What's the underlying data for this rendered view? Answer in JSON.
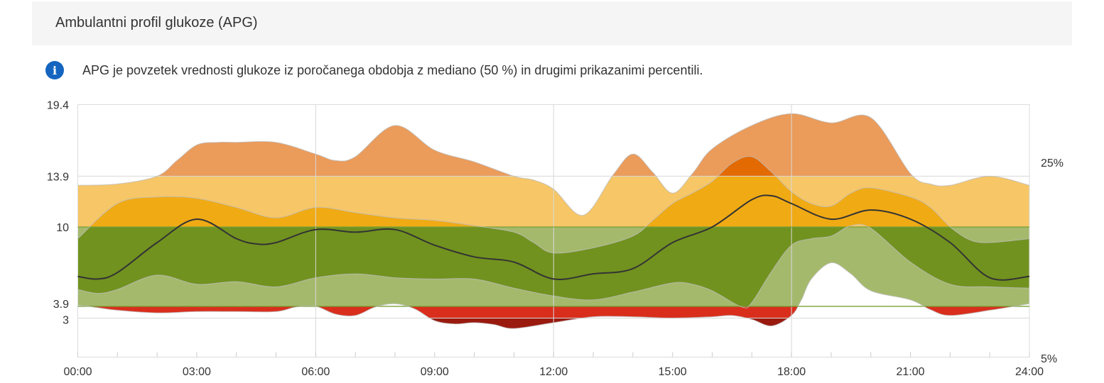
{
  "header": {
    "title": "Ambulantni profil glukoze (APG)"
  },
  "info": {
    "icon": "info-icon",
    "text": "APG je povzetek vrednosti glukoze iz poročanega obdobja z mediano (50 %) in drugimi prikazanimi percentili."
  },
  "chart_data": {
    "type": "area",
    "ylim": [
      0,
      19.4
    ],
    "xlim": [
      0,
      24
    ],
    "y_tick_labels": [
      "19.4",
      "13.9",
      "10",
      "3.9",
      "3"
    ],
    "y_ticks": [
      19.4,
      13.9,
      10,
      3.9,
      3
    ],
    "x_tick_labels": [
      "00:00",
      "03:00",
      "06:00",
      "09:00",
      "12:00",
      "15:00",
      "18:00",
      "21:00",
      "24:00"
    ],
    "x_ticks": [
      0,
      3,
      6,
      9,
      12,
      15,
      18,
      21,
      24
    ],
    "right_labels": [
      "25%",
      "5%"
    ],
    "target_range": [
      3.9,
      10
    ],
    "zones": [
      {
        "from": 13.9,
        "to": 19.4,
        "outer_color": "#eb9b5a",
        "inner_color": "#e36a00"
      },
      {
        "from": 10,
        "to": 13.9,
        "outer_color": "#f6c667",
        "inner_color": "#f0aa14"
      },
      {
        "from": 3.9,
        "to": 10,
        "outer_color": "#a5b96d",
        "inner_color": "#71921f"
      },
      {
        "from": 3,
        "to": 3.9,
        "outer_color": "#d92e1c",
        "inner_color": "#d92e1c"
      },
      {
        "from": 0,
        "to": 3,
        "outer_color": "#9b1a0f",
        "inner_color": "#9b1a0f"
      }
    ],
    "series": {
      "p95": [
        [
          0,
          13.2
        ],
        [
          1,
          13.3
        ],
        [
          2,
          13.9
        ],
        [
          2.5,
          15.1
        ],
        [
          3,
          16.3
        ],
        [
          3.5,
          16.5
        ],
        [
          4,
          16.5
        ],
        [
          5,
          16.5
        ],
        [
          6,
          15.6
        ],
        [
          6.5,
          15.1
        ],
        [
          7,
          15.4
        ],
        [
          8,
          17.8
        ],
        [
          9,
          15.9
        ],
        [
          10,
          15.0
        ],
        [
          11,
          13.9
        ],
        [
          11.5,
          13.6
        ],
        [
          12,
          12.9
        ],
        [
          12.75,
          10.9
        ],
        [
          13.5,
          14.0
        ],
        [
          14,
          15.6
        ],
        [
          14.5,
          14.2
        ],
        [
          15,
          12.6
        ],
        [
          15.5,
          14.1
        ],
        [
          16,
          16.0
        ],
        [
          17,
          17.8
        ],
        [
          18,
          18.7
        ],
        [
          19,
          18.0
        ],
        [
          20,
          18.4
        ],
        [
          21,
          14.1
        ],
        [
          21.5,
          13.3
        ],
        [
          22,
          13.2
        ],
        [
          23,
          13.9
        ],
        [
          24,
          13.2
        ]
      ],
      "p75": [
        [
          0,
          9.1
        ],
        [
          1,
          11.8
        ],
        [
          2,
          12.3
        ],
        [
          3,
          12.2
        ],
        [
          4,
          11.5
        ],
        [
          5,
          10.7
        ],
        [
          6,
          11.5
        ],
        [
          7,
          11.1
        ],
        [
          8,
          10.7
        ],
        [
          9,
          10.5
        ],
        [
          10,
          10.1
        ],
        [
          11,
          9.6
        ],
        [
          11.5,
          8.8
        ],
        [
          12,
          8.0
        ],
        [
          13,
          8.4
        ],
        [
          14,
          9.3
        ],
        [
          14.5,
          10.5
        ],
        [
          15,
          11.8
        ],
        [
          15.5,
          12.6
        ],
        [
          16,
          13.5
        ],
        [
          16.5,
          14.9
        ],
        [
          17,
          15.4
        ],
        [
          17.5,
          14.2
        ],
        [
          18,
          12.7
        ],
        [
          18.5,
          11.8
        ],
        [
          19,
          11.6
        ],
        [
          19.5,
          12.6
        ],
        [
          20,
          13.0
        ],
        [
          21,
          12.3
        ],
        [
          21.5,
          11.5
        ],
        [
          22,
          10.0
        ],
        [
          22.5,
          9.0
        ],
        [
          23,
          8.8
        ],
        [
          24,
          9.1
        ]
      ],
      "p50": [
        [
          0,
          6.2
        ],
        [
          0.5,
          6.0
        ],
        [
          1,
          6.5
        ],
        [
          2,
          8.8
        ],
        [
          3,
          10.6
        ],
        [
          4,
          9.1
        ],
        [
          4.5,
          8.7
        ],
        [
          5,
          8.8
        ],
        [
          6,
          9.8
        ],
        [
          7,
          9.6
        ],
        [
          8,
          9.8
        ],
        [
          9,
          8.6
        ],
        [
          10,
          7.7
        ],
        [
          11,
          7.3
        ],
        [
          12,
          6.0
        ],
        [
          13,
          6.4
        ],
        [
          14,
          6.8
        ],
        [
          15,
          8.8
        ],
        [
          16,
          10.0
        ],
        [
          17,
          12.1
        ],
        [
          17.5,
          12.4
        ],
        [
          18,
          11.8
        ],
        [
          19,
          10.6
        ],
        [
          20,
          11.3
        ],
        [
          21,
          10.6
        ],
        [
          22,
          8.8
        ],
        [
          23,
          6.1
        ],
        [
          24,
          6.2
        ]
      ],
      "p25": [
        [
          0,
          5.2
        ],
        [
          0.5,
          4.9
        ],
        [
          1,
          5.2
        ],
        [
          2,
          6.3
        ],
        [
          3,
          5.6
        ],
        [
          4,
          5.8
        ],
        [
          5,
          5.4
        ],
        [
          6,
          6.1
        ],
        [
          7,
          6.4
        ],
        [
          8,
          6.1
        ],
        [
          9,
          6.0
        ],
        [
          10,
          6.0
        ],
        [
          11,
          5.3
        ],
        [
          12,
          4.7
        ],
        [
          13,
          4.4
        ],
        [
          14,
          5.0
        ],
        [
          15,
          5.7
        ],
        [
          15.5,
          5.6
        ],
        [
          16,
          5.1
        ],
        [
          16.75,
          3.85
        ],
        [
          17,
          4.2
        ],
        [
          17.5,
          6.6
        ],
        [
          18,
          8.6
        ],
        [
          18.5,
          9.1
        ],
        [
          19,
          9.3
        ],
        [
          19.5,
          10.1
        ],
        [
          20,
          9.9
        ],
        [
          21,
          7.3
        ],
        [
          22,
          5.6
        ],
        [
          23,
          5.4
        ],
        [
          24,
          5.3
        ]
      ],
      "p5": [
        [
          0,
          4.0
        ],
        [
          0.5,
          3.8
        ],
        [
          1,
          3.6
        ],
        [
          2,
          3.4
        ],
        [
          3,
          3.5
        ],
        [
          4,
          3.5
        ],
        [
          5,
          3.5
        ],
        [
          5.5,
          3.85
        ],
        [
          6,
          3.9
        ],
        [
          6.5,
          3.3
        ],
        [
          7,
          3.2
        ],
        [
          7.5,
          3.85
        ],
        [
          8,
          4.1
        ],
        [
          8.5,
          3.7
        ],
        [
          9,
          2.8
        ],
        [
          9.5,
          2.55
        ],
        [
          10,
          2.65
        ],
        [
          10.5,
          2.5
        ],
        [
          11,
          2.2
        ],
        [
          12,
          2.65
        ],
        [
          13,
          3.1
        ],
        [
          14,
          3.1
        ],
        [
          15,
          3.0
        ],
        [
          16,
          3.1
        ],
        [
          16.5,
          3.2
        ],
        [
          17,
          2.9
        ],
        [
          17.5,
          2.4
        ],
        [
          18,
          3.2
        ],
        [
          18.25,
          4.4
        ],
        [
          18.5,
          6.0
        ],
        [
          19,
          7.25
        ],
        [
          19.5,
          6.4
        ],
        [
          20,
          5.1
        ],
        [
          21,
          4.4
        ],
        [
          21.5,
          3.65
        ],
        [
          22,
          3.2
        ],
        [
          23,
          3.6
        ],
        [
          24,
          4.1
        ]
      ]
    },
    "median_color": "#333333",
    "grid": true
  }
}
